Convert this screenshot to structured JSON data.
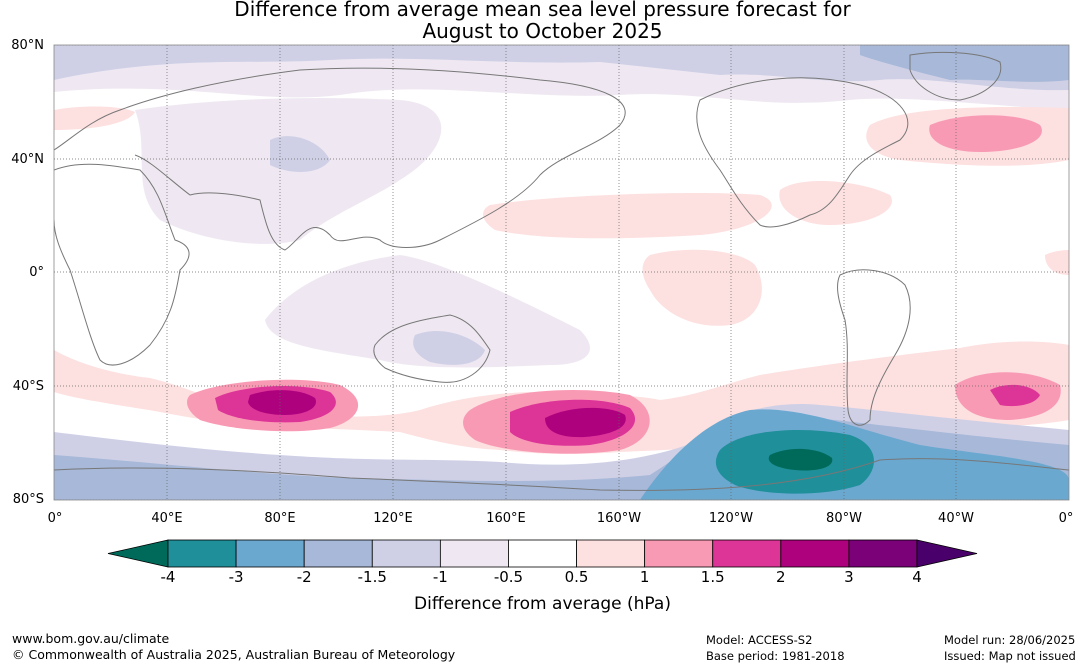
{
  "title_line1": "Difference from average mean sea level pressure forecast for",
  "title_line2": "August to October 2025",
  "lat_labels": [
    "80°N",
    "40°N",
    "0°",
    "40°S",
    "80°S"
  ],
  "lon_labels": [
    "0°",
    "40°E",
    "80°E",
    "120°E",
    "160°E",
    "160°W",
    "120°W",
    "80°W",
    "40°W",
    "0°"
  ],
  "colorbar": {
    "title": "Difference from average (hPa)",
    "tick_labels": [
      "-4",
      "-3",
      "-2",
      "-1.5",
      "-1",
      "-0.5",
      "0.5",
      "1",
      "1.5",
      "2",
      "3",
      "4"
    ],
    "colors": [
      "#006a5a",
      "#1f8f99",
      "#6aa8d0",
      "#a7b8d8",
      "#cfd0e6",
      "#efe8f2",
      "#ffffff",
      "#fde0e0",
      "#f99ab5",
      "#dd3497",
      "#ae017e",
      "#7a0177",
      "#49006a"
    ]
  },
  "footer": {
    "url": "www.bom.gov.au/climate",
    "copyright": "© Commonwealth of Australia 2025, Australian Bureau of Meteorology",
    "model": "Model: ACCESS-S2",
    "base_period": "Base period: 1981-2018",
    "model_run": "Model run: 28/06/2025",
    "issued": "Issued: Map not issued"
  }
}
